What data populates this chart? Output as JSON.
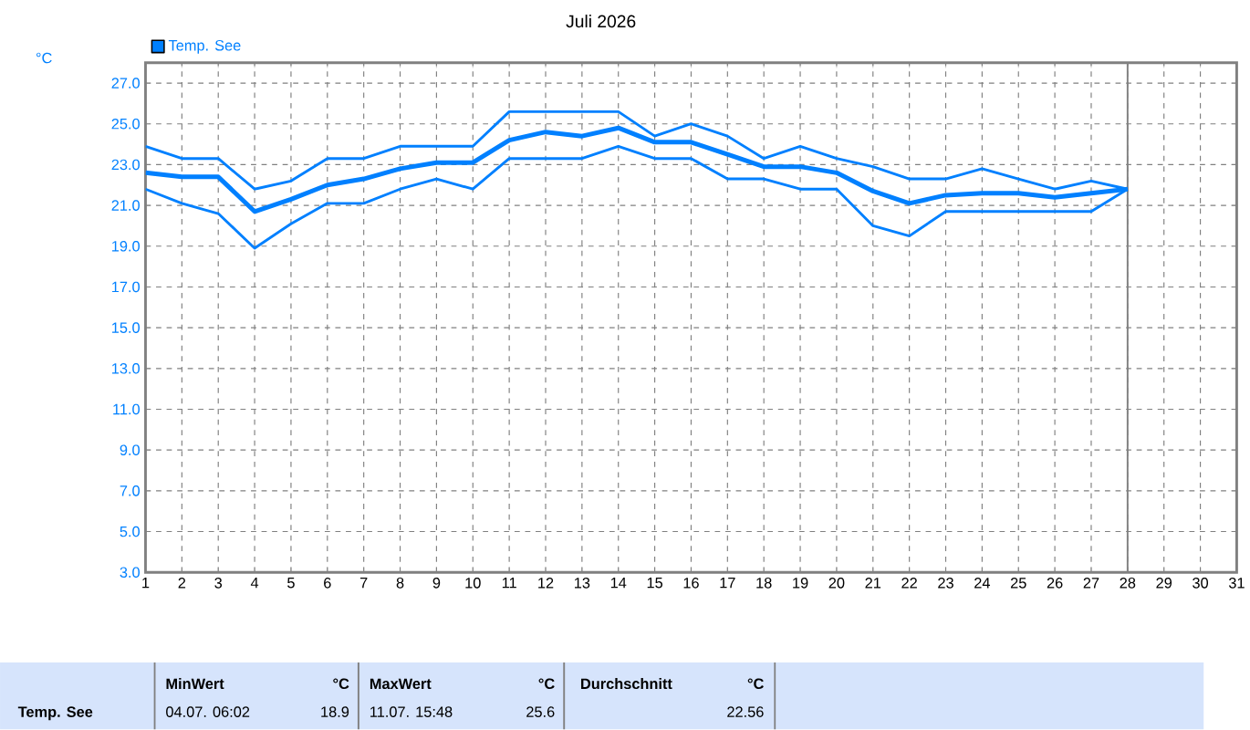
{
  "chart_data": {
    "type": "line",
    "title": "Juli 2026",
    "ylabel": "°C",
    "x": [
      1,
      2,
      3,
      4,
      5,
      6,
      7,
      8,
      9,
      10,
      11,
      12,
      13,
      14,
      15,
      16,
      17,
      18,
      19,
      20,
      21,
      22,
      23,
      24,
      25,
      26,
      27,
      28
    ],
    "series": [
      {
        "color": "#0080ff",
        "values": [
          23.9,
          23.3,
          23.3,
          21.8,
          22.2,
          23.3,
          23.3,
          23.9,
          23.9,
          23.9,
          25.6,
          25.6,
          25.6,
          25.6,
          24.4,
          25.0,
          24.4,
          23.3,
          23.9,
          23.3,
          22.9,
          22.3,
          22.3,
          22.8,
          22.3,
          21.8,
          22.2,
          21.8
        ]
      },
      {
        "name": "Temp. See",
        "color": "#0080ff",
        "values": [
          22.6,
          22.4,
          22.4,
          20.7,
          21.3,
          22.0,
          22.3,
          22.8,
          23.1,
          23.1,
          24.2,
          24.6,
          24.4,
          24.8,
          24.1,
          24.1,
          23.5,
          22.9,
          22.9,
          22.6,
          21.7,
          21.1,
          21.5,
          21.6,
          21.6,
          21.4,
          21.6,
          21.8
        ]
      },
      {
        "color": "#0080ff",
        "values": [
          21.8,
          21.1,
          20.6,
          18.9,
          20.1,
          21.1,
          21.1,
          21.8,
          22.3,
          21.8,
          23.3,
          23.3,
          23.3,
          23.9,
          23.3,
          23.3,
          22.3,
          22.3,
          21.8,
          21.8,
          20.0,
          19.5,
          20.7,
          20.7,
          20.7,
          20.7,
          20.7,
          21.8
        ]
      }
    ],
    "xlim": [
      1,
      31
    ],
    "ylim": [
      3,
      28
    ],
    "xticks": [
      1,
      2,
      3,
      4,
      5,
      6,
      7,
      8,
      9,
      10,
      11,
      12,
      13,
      14,
      15,
      16,
      17,
      18,
      19,
      20,
      21,
      22,
      23,
      24,
      25,
      26,
      27,
      28,
      29,
      30,
      31
    ],
    "yticks": [
      {
        "value": 3,
        "label": "3.0"
      },
      {
        "value": 5,
        "label": "5.0"
      },
      {
        "value": 7,
        "label": "7.0"
      },
      {
        "value": 9,
        "label": "9.0"
      },
      {
        "value": 11,
        "label": "11.0"
      },
      {
        "value": 13,
        "label": "13.0"
      },
      {
        "value": 15,
        "label": "15.0"
      },
      {
        "value": 17,
        "label": "17.0"
      },
      {
        "value": 19,
        "label": "19.0"
      },
      {
        "value": 21,
        "label": "21.0"
      },
      {
        "value": 23,
        "label": "23.0"
      },
      {
        "value": 25,
        "label": "25.0"
      },
      {
        "value": 27,
        "label": "27.0"
      }
    ],
    "ref_lines": [
      {
        "axis": "x",
        "value": 28,
        "color": "#808080"
      }
    ],
    "grid": true,
    "legend": "top left",
    "marker": "none",
    "line_style": "solid",
    "annotations": [
      "Temp. See",
      "MinWert",
      "°C",
      "04.07. 06:02",
      "18.9",
      "MaxWert",
      "°C",
      "11.07. 15:48",
      "25.6",
      "Durchschnitt",
      "°C",
      "22.56"
    ]
  }
}
